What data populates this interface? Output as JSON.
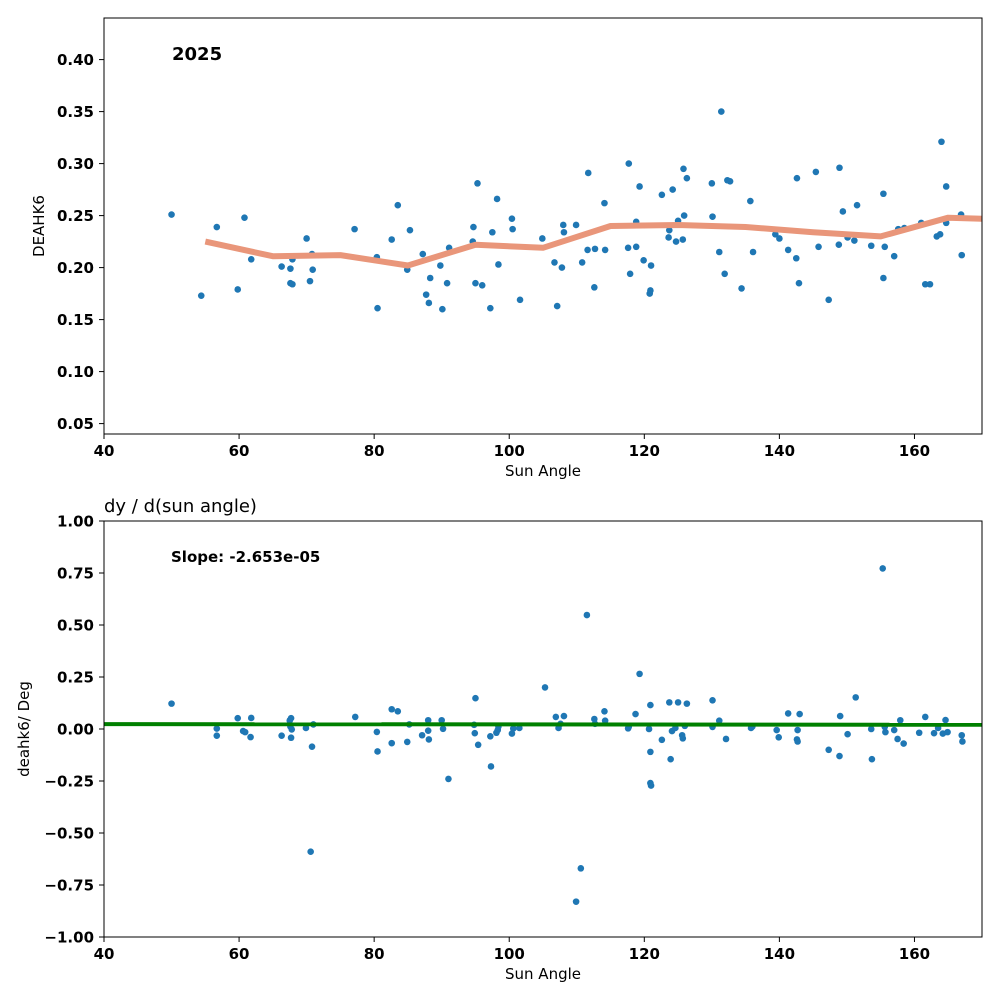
{
  "chart_data": [
    {
      "type": "scatter",
      "title": "",
      "annotation": "2025",
      "xlabel": "Sun Angle",
      "ylabel": "DEAHK6",
      "xlim": [
        40,
        170
      ],
      "ylim": [
        0.04,
        0.44
      ],
      "xticks": [
        40,
        60,
        80,
        100,
        120,
        140,
        160
      ],
      "yticks": [
        0.05,
        0.1,
        0.15,
        0.2,
        0.25,
        0.3,
        0.35,
        0.4
      ],
      "ytick_labels": [
        "0.05",
        "0.10",
        "0.15",
        "0.20",
        "0.25",
        "0.30",
        "0.35",
        "0.40"
      ],
      "grid": false,
      "colors": {
        "points": "#1f77b4",
        "trend": "#e9967a"
      },
      "points": [
        [
          50.0,
          0.251
        ],
        [
          54.4,
          0.173
        ],
        [
          56.7,
          0.239
        ],
        [
          59.8,
          0.179
        ],
        [
          60.8,
          0.248
        ],
        [
          61.8,
          0.208
        ],
        [
          66.3,
          0.201
        ],
        [
          67.6,
          0.185
        ],
        [
          67.6,
          0.199
        ],
        [
          67.9,
          0.184
        ],
        [
          67.9,
          0.208
        ],
        [
          70.0,
          0.228
        ],
        [
          70.5,
          0.187
        ],
        [
          70.9,
          0.198
        ],
        [
          70.8,
          0.213
        ],
        [
          77.1,
          0.237
        ],
        [
          80.5,
          0.161
        ],
        [
          80.4,
          0.21
        ],
        [
          82.6,
          0.227
        ],
        [
          83.5,
          0.26
        ],
        [
          84.9,
          0.198
        ],
        [
          85.3,
          0.236
        ],
        [
          87.2,
          0.213
        ],
        [
          87.7,
          0.174
        ],
        [
          88.1,
          0.166
        ],
        [
          88.3,
          0.19
        ],
        [
          89.8,
          0.202
        ],
        [
          90.1,
          0.16
        ],
        [
          90.8,
          0.185
        ],
        [
          91.1,
          0.219
        ],
        [
          94.6,
          0.225
        ],
        [
          94.7,
          0.239
        ],
        [
          95.0,
          0.185
        ],
        [
          95.3,
          0.281
        ],
        [
          96.0,
          0.183
        ],
        [
          97.2,
          0.161
        ],
        [
          97.5,
          0.234
        ],
        [
          98.2,
          0.266
        ],
        [
          98.4,
          0.203
        ],
        [
          100.4,
          0.247
        ],
        [
          100.5,
          0.237
        ],
        [
          101.6,
          0.169
        ],
        [
          104.9,
          0.228
        ],
        [
          106.7,
          0.205
        ],
        [
          107.1,
          0.163
        ],
        [
          107.8,
          0.2
        ],
        [
          108.0,
          0.241
        ],
        [
          108.1,
          0.234
        ],
        [
          109.9,
          0.241
        ],
        [
          110.8,
          0.205
        ],
        [
          111.7,
          0.291
        ],
        [
          111.6,
          0.217
        ],
        [
          112.6,
          0.181
        ],
        [
          112.7,
          0.218
        ],
        [
          114.1,
          0.262
        ],
        [
          114.2,
          0.217
        ],
        [
          117.7,
          0.3
        ],
        [
          117.6,
          0.219
        ],
        [
          117.9,
          0.194
        ],
        [
          118.8,
          0.244
        ],
        [
          118.8,
          0.22
        ],
        [
          119.3,
          0.278
        ],
        [
          119.9,
          0.207
        ],
        [
          120.8,
          0.175
        ],
        [
          120.9,
          0.178
        ],
        [
          121.0,
          0.202
        ],
        [
          122.6,
          0.27
        ],
        [
          123.6,
          0.229
        ],
        [
          123.7,
          0.236
        ],
        [
          124.2,
          0.275
        ],
        [
          124.7,
          0.225
        ],
        [
          125.0,
          0.245
        ],
        [
          125.7,
          0.227
        ],
        [
          125.8,
          0.295
        ],
        [
          125.9,
          0.25
        ],
        [
          126.3,
          0.286
        ],
        [
          130.1,
          0.249
        ],
        [
          130.0,
          0.281
        ],
        [
          131.1,
          0.215
        ],
        [
          131.4,
          0.35
        ],
        [
          131.9,
          0.194
        ],
        [
          132.3,
          0.284
        ],
        [
          132.7,
          0.283
        ],
        [
          134.4,
          0.18
        ],
        [
          135.7,
          0.264
        ],
        [
          136.1,
          0.215
        ],
        [
          139.4,
          0.232
        ],
        [
          140.0,
          0.228
        ],
        [
          141.3,
          0.217
        ],
        [
          142.6,
          0.286
        ],
        [
          142.5,
          0.209
        ],
        [
          142.9,
          0.185
        ],
        [
          145.4,
          0.292
        ],
        [
          145.8,
          0.22
        ],
        [
          147.3,
          0.169
        ],
        [
          148.9,
          0.296
        ],
        [
          148.8,
          0.222
        ],
        [
          149.4,
          0.254
        ],
        [
          150.1,
          0.229
        ],
        [
          151.1,
          0.226
        ],
        [
          151.5,
          0.26
        ],
        [
          153.6,
          0.221
        ],
        [
          155.4,
          0.271
        ],
        [
          155.4,
          0.19
        ],
        [
          155.6,
          0.22
        ],
        [
          157.0,
          0.211
        ],
        [
          157.6,
          0.237
        ],
        [
          158.5,
          0.238
        ],
        [
          161.0,
          0.243
        ],
        [
          161.6,
          0.184
        ],
        [
          162.3,
          0.184
        ],
        [
          163.3,
          0.23
        ],
        [
          163.8,
          0.232
        ],
        [
          164.0,
          0.321
        ],
        [
          164.7,
          0.278
        ],
        [
          164.7,
          0.243
        ],
        [
          166.9,
          0.251
        ],
        [
          167.0,
          0.212
        ]
      ],
      "trend": {
        "x": [
          55.0,
          65.0,
          75.0,
          85.0,
          95.0,
          105.0,
          115.0,
          125.0,
          135.0,
          145.0,
          155.0,
          165.0,
          170.0
        ],
        "y": [
          0.225,
          0.211,
          0.212,
          0.202,
          0.222,
          0.219,
          0.24,
          0.241,
          0.239,
          0.234,
          0.23,
          0.248,
          0.247
        ]
      }
    },
    {
      "type": "scatter",
      "title": "dy / d(sun angle)",
      "annotation": "Slope: -2.653e-05",
      "xlabel": "Sun Angle",
      "ylabel": "deahk6/ Deg",
      "xlim": [
        40,
        170
      ],
      "ylim": [
        -1.0,
        1.0
      ],
      "xticks": [
        40,
        60,
        80,
        100,
        120,
        140,
        160
      ],
      "yticks": [
        -1.0,
        -0.75,
        -0.5,
        -0.25,
        0.0,
        0.25,
        0.5,
        0.75,
        1.0
      ],
      "ytick_labels": [
        "−1.00",
        "−0.75",
        "−0.50",
        "−0.25",
        "0.00",
        "0.25",
        "0.50",
        "0.75",
        "1.00"
      ],
      "grid": false,
      "colors": {
        "points": "#1f77b4",
        "fit": "#008000"
      },
      "points": [
        [
          50.0,
          0.122
        ],
        [
          56.7,
          0.002
        ],
        [
          56.7,
          -0.032
        ],
        [
          59.8,
          0.052
        ],
        [
          60.6,
          -0.01
        ],
        [
          60.9,
          -0.015
        ],
        [
          61.7,
          -0.039
        ],
        [
          61.8,
          0.053
        ],
        [
          66.3,
          -0.032
        ],
        [
          67.5,
          0.041
        ],
        [
          67.7,
          0.052
        ],
        [
          67.6,
          0.012
        ],
        [
          67.7,
          -0.042
        ],
        [
          67.8,
          -0.002
        ],
        [
          69.9,
          0.005
        ],
        [
          70.6,
          -0.59
        ],
        [
          70.8,
          -0.085
        ],
        [
          71.0,
          0.022
        ],
        [
          77.2,
          0.058
        ],
        [
          80.4,
          -0.014
        ],
        [
          80.5,
          -0.108
        ],
        [
          82.6,
          -0.068
        ],
        [
          82.6,
          0.095
        ],
        [
          83.5,
          0.085
        ],
        [
          84.9,
          -0.062
        ],
        [
          85.2,
          0.022
        ],
        [
          87.1,
          -0.03
        ],
        [
          88.0,
          0.042
        ],
        [
          88.1,
          -0.05
        ],
        [
          88.0,
          -0.008
        ],
        [
          90.0,
          0.042
        ],
        [
          90.2,
          0.001
        ],
        [
          91.0,
          -0.24
        ],
        [
          94.8,
          0.02
        ],
        [
          94.9,
          -0.02
        ],
        [
          95.0,
          0.148
        ],
        [
          95.4,
          -0.076
        ],
        [
          97.2,
          -0.035
        ],
        [
          97.3,
          -0.18
        ],
        [
          98.1,
          -0.018
        ],
        [
          98.3,
          -0.005
        ],
        [
          98.4,
          0.012
        ],
        [
          100.4,
          -0.022
        ],
        [
          100.6,
          0.002
        ],
        [
          101.5,
          0.005
        ],
        [
          105.3,
          0.2
        ],
        [
          106.9,
          0.058
        ],
        [
          107.3,
          0.005
        ],
        [
          107.6,
          0.025
        ],
        [
          108.1,
          0.062
        ],
        [
          109.9,
          -0.83
        ],
        [
          110.6,
          -0.67
        ],
        [
          111.5,
          0.548
        ],
        [
          112.6,
          0.048
        ],
        [
          112.7,
          0.025
        ],
        [
          114.1,
          0.085
        ],
        [
          114.2,
          0.04
        ],
        [
          117.6,
          0.003
        ],
        [
          117.7,
          0.01
        ],
        [
          118.7,
          0.072
        ],
        [
          119.3,
          0.265
        ],
        [
          120.7,
          0.0
        ],
        [
          120.9,
          0.115
        ],
        [
          120.9,
          -0.11
        ],
        [
          120.9,
          -0.26
        ],
        [
          121.0,
          -0.272
        ],
        [
          122.6,
          -0.052
        ],
        [
          123.7,
          0.128
        ],
        [
          123.9,
          -0.145
        ],
        [
          124.1,
          -0.01
        ],
        [
          124.6,
          0.005
        ],
        [
          125.0,
          0.128
        ],
        [
          125.6,
          -0.03
        ],
        [
          125.7,
          -0.045
        ],
        [
          126.0,
          0.015
        ],
        [
          126.3,
          0.122
        ],
        [
          130.1,
          0.138
        ],
        [
          130.1,
          0.01
        ],
        [
          131.1,
          0.04
        ],
        [
          132.1,
          -0.048
        ],
        [
          135.8,
          0.005
        ],
        [
          136.0,
          0.012
        ],
        [
          139.6,
          -0.005
        ],
        [
          139.9,
          -0.04
        ],
        [
          141.3,
          0.075
        ],
        [
          142.6,
          -0.05
        ],
        [
          142.7,
          -0.06
        ],
        [
          142.7,
          -0.005
        ],
        [
          143.0,
          0.072
        ],
        [
          147.3,
          -0.1
        ],
        [
          148.9,
          -0.13
        ],
        [
          149.0,
          0.062
        ],
        [
          150.1,
          -0.025
        ],
        [
          151.3,
          0.152
        ],
        [
          153.6,
          0.0
        ],
        [
          153.7,
          -0.145
        ],
        [
          155.3,
          0.772
        ],
        [
          155.6,
          0.01
        ],
        [
          155.7,
          -0.015
        ],
        [
          157.0,
          -0.005
        ],
        [
          157.5,
          -0.048
        ],
        [
          157.9,
          0.042
        ],
        [
          158.4,
          -0.07
        ],
        [
          160.7,
          -0.018
        ],
        [
          161.6,
          0.058
        ],
        [
          162.9,
          -0.02
        ],
        [
          163.5,
          0.005
        ],
        [
          164.2,
          -0.022
        ],
        [
          164.6,
          0.043
        ],
        [
          164.9,
          -0.015
        ],
        [
          167.0,
          -0.03
        ],
        [
          167.1,
          -0.06
        ]
      ],
      "fit": {
        "x": [
          40,
          170
        ],
        "y": [
          0.0237,
          0.0203
        ]
      }
    }
  ]
}
